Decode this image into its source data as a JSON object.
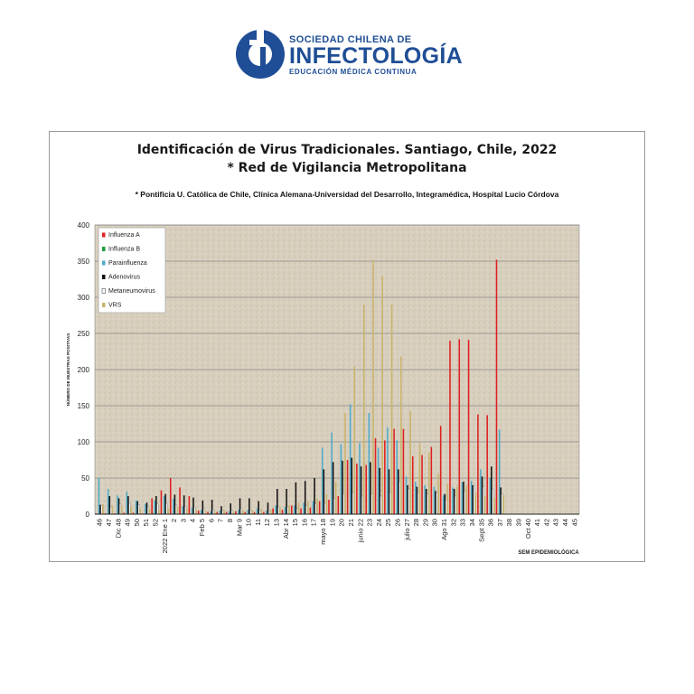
{
  "logo": {
    "line1": "SOCIEDAD CHILENA DE",
    "line2": "INFECTOLOGÍA",
    "line3": "EDUCACIÓN MÉDICA CONTINUA",
    "color": "#1f4e96"
  },
  "chart_data": {
    "type": "bar",
    "title": "Identificación de Virus Tradicionales. Santiago, Chile, 2022",
    "title2": "* Red de Vigilancia Metropolitana",
    "subtitle": "* Pontificia U. Católica de Chile, Clínica Alemana-Universidad del Desarrollo, Integramédica, Hospital Lucio Córdova",
    "ylabel": "NÚMERO DE MUESTRAS POSITIVAS",
    "xlabel": "SEM EPIDEMIOLÓGICA",
    "ylim": [
      0,
      400
    ],
    "yticks": [
      0,
      50,
      100,
      150,
      200,
      250,
      300,
      350,
      400
    ],
    "grid": true,
    "legend": "top-left",
    "categories": [
      "46",
      "47",
      "Dic 48",
      "49",
      "50",
      "51",
      "52",
      "2022 Ene 1",
      "2",
      "3",
      "4",
      "Feb 5",
      "6",
      "7",
      "8",
      "Mar 9",
      "10",
      "11",
      "12",
      "13",
      "Abr 14",
      "15",
      "16",
      "17",
      "mayo 18",
      "19",
      "20",
      "21",
      "junio 22",
      "23",
      "24",
      "25",
      "26",
      "julio 27",
      "28",
      "29",
      "30",
      "Ago 31",
      "32",
      "33",
      "34",
      "Sept 35",
      "36",
      "37",
      "38",
      "39",
      "Oct 40",
      "41",
      "42",
      "43",
      "44",
      "45"
    ],
    "series": [
      {
        "name": "Influenza A",
        "color": "#e02020",
        "values": [
          1,
          1,
          1,
          2,
          2,
          1,
          22,
          33,
          50,
          37,
          25,
          5,
          3,
          3,
          3,
          4,
          3,
          3,
          3,
          8,
          6,
          12,
          8,
          9,
          18,
          20,
          25,
          75,
          70,
          68,
          105,
          102,
          118,
          118,
          80,
          82,
          93,
          122,
          240,
          242,
          241,
          138,
          137,
          352,
          0,
          0,
          0,
          0,
          0,
          0,
          0,
          0
        ]
      },
      {
        "name": "Influenza B",
        "color": "#1f9e3a",
        "values": [
          0,
          0,
          0,
          0,
          0,
          0,
          1,
          0,
          0,
          0,
          0,
          0,
          0,
          0,
          0,
          0,
          0,
          0,
          0,
          0,
          0,
          0,
          0,
          0,
          1,
          0,
          0,
          0,
          0,
          0,
          0,
          0,
          0,
          0,
          0,
          0,
          0,
          0,
          0,
          0,
          0,
          0,
          0,
          0,
          0,
          0,
          0,
          0,
          0,
          0,
          0,
          0
        ]
      },
      {
        "name": "Parainfluenza",
        "color": "#4eaac8",
        "values": [
          50,
          35,
          26,
          31,
          19,
          14,
          19,
          25,
          21,
          11,
          9,
          6,
          4,
          5,
          4,
          6,
          6,
          8,
          5,
          12,
          10,
          12,
          16,
          18,
          92,
          113,
          97,
          152,
          98,
          140,
          92,
          120,
          102,
          52,
          45,
          40,
          38,
          26,
          37,
          44,
          46,
          62,
          50,
          117,
          0,
          0,
          0,
          0,
          0,
          0,
          0,
          0
        ]
      },
      {
        "name": "Adenovirus",
        "color": "#111111",
        "values": [
          13,
          25,
          22,
          25,
          18,
          16,
          25,
          28,
          27,
          26,
          23,
          19,
          20,
          11,
          15,
          22,
          22,
          18,
          16,
          35,
          35,
          44,
          46,
          50,
          62,
          72,
          74,
          78,
          66,
          72,
          64,
          62,
          62,
          40,
          38,
          35,
          32,
          28,
          35,
          45,
          40,
          52,
          66,
          37,
          0,
          0,
          0,
          0,
          0,
          0,
          0,
          0
        ]
      },
      {
        "name": "Metaneumovirus",
        "color": "#ffffff",
        "values": [
          12,
          10,
          14,
          16,
          13,
          11,
          14,
          15,
          13,
          11,
          10,
          8,
          6,
          5,
          6,
          8,
          6,
          6,
          5,
          10,
          10,
          8,
          12,
          14,
          15,
          22,
          28,
          30,
          25,
          28,
          25,
          30,
          45,
          35,
          30,
          28,
          30,
          20,
          25,
          32,
          40,
          38,
          35,
          28,
          0,
          0,
          0,
          0,
          0,
          0,
          0,
          0
        ]
      },
      {
        "name": "VRS",
        "color": "#c8b46a",
        "values": [
          14,
          12,
          12,
          10,
          8,
          8,
          6,
          8,
          10,
          8,
          6,
          5,
          4,
          6,
          4,
          6,
          6,
          7,
          6,
          10,
          12,
          16,
          18,
          22,
          28,
          45,
          140,
          204,
          290,
          352,
          330,
          290,
          218,
          143,
          98,
          85,
          56,
          42,
          38,
          40,
          30,
          25,
          22,
          26,
          0,
          0,
          0,
          0,
          0,
          0,
          0,
          0
        ]
      }
    ]
  }
}
